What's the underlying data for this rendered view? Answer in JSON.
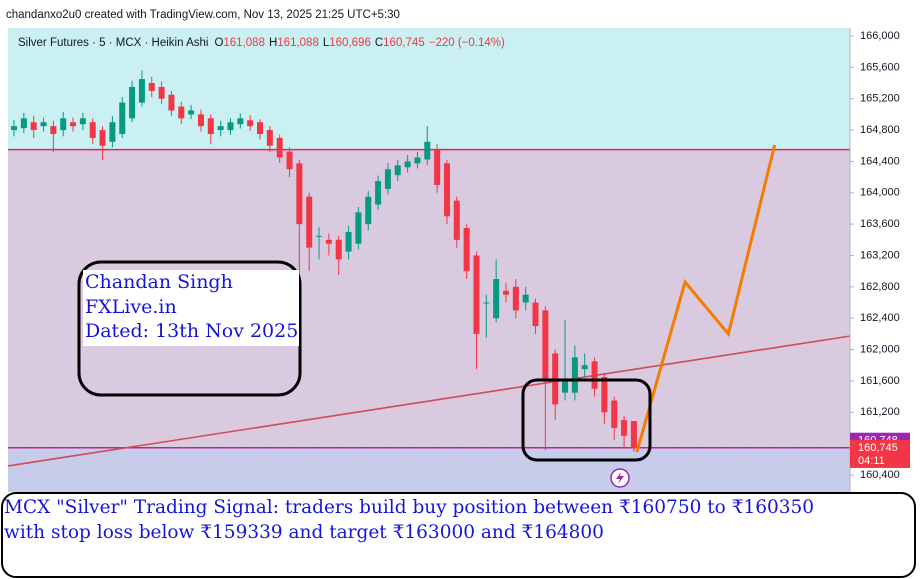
{
  "header": "chandanxo2u0 created with TradingView.com, Nov 13, 2025 21:25 UTC+5:30",
  "chart_data": {
    "type": "candlestick",
    "legend": {
      "symbol": "Silver Futures · 5 · MCX · Heikin Ashi",
      "items": [
        {
          "key": "O",
          "value": 161088,
          "label": "161,088"
        },
        {
          "key": "H",
          "value": 161088,
          "label": "161,088"
        },
        {
          "key": "L",
          "value": 160696,
          "label": "160,696"
        },
        {
          "key": "C",
          "value": 160745,
          "label": "160,745"
        }
      ],
      "change": "−220 (−0.14%)"
    },
    "up_color": "#089981",
    "down_color": "#f23645",
    "open": [
      164800,
      164825,
      164900,
      164850,
      164850,
      164800,
      164900,
      164875,
      164900,
      164800,
      164650,
      164750,
      164950,
      165150,
      165400,
      165350,
      165250,
      165100,
      165000,
      165000,
      164950,
      164800,
      164800,
      164875,
      164925,
      164900,
      164800,
      164700,
      164525,
      164375,
      163950,
      163450,
      163400,
      163400,
      163250,
      163350,
      163600,
      163850,
      164050,
      164225,
      164325,
      164375,
      164425,
      164550,
      164375,
      163900,
      163550,
      163200,
      162600,
      162400,
      162750,
      162800,
      162600,
      162600,
      162500,
      161950,
      161450,
      161450,
      161750,
      161850,
      161650,
      161350,
      161100,
      161088
    ],
    "high": [
      164930,
      165020,
      164980,
      164960,
      164920,
      165030,
      164960,
      165020,
      164950,
      164850,
      164980,
      165220,
      165430,
      165560,
      165480,
      165420,
      165300,
      165160,
      165120,
      165060,
      165000,
      164920,
      164950,
      165010,
      164990,
      164940,
      164850,
      164740,
      164580,
      164420,
      164000,
      163560,
      163480,
      163450,
      163580,
      163820,
      164020,
      164220,
      164380,
      164420,
      164480,
      164520,
      164850,
      164620,
      164420,
      163950,
      163600,
      163250,
      162700,
      163150,
      162850,
      162900,
      162800,
      162650,
      162550,
      162000,
      162380,
      162050,
      161950,
      161900,
      161700,
      161400,
      161150,
      161088
    ],
    "low": [
      164720,
      164760,
      164700,
      164780,
      164520,
      164720,
      164780,
      164800,
      164620,
      164420,
      164580,
      164700,
      164900,
      165100,
      165220,
      165130,
      164980,
      164880,
      164940,
      164780,
      164620,
      164720,
      164740,
      164820,
      164790,
      164680,
      164520,
      164380,
      164200,
      162950,
      163000,
      163150,
      163200,
      162950,
      163150,
      163280,
      163520,
      163780,
      163980,
      164150,
      164260,
      164310,
      164350,
      164000,
      163600,
      163300,
      162900,
      161750,
      162150,
      162350,
      162600,
      162400,
      162500,
      162200,
      160720,
      161100,
      161350,
      161350,
      161650,
      161400,
      161050,
      160850,
      160750,
      160696
    ],
    "close": [
      164850,
      164950,
      164800,
      164900,
      164750,
      164950,
      164850,
      164950,
      164700,
      164600,
      164900,
      165150,
      165350,
      165450,
      165300,
      165200,
      165050,
      164950,
      165050,
      164850,
      164750,
      164850,
      164900,
      164950,
      164850,
      164750,
      164600,
      164450,
      164300,
      163600,
      163300,
      163450,
      163350,
      163150,
      163500,
      163750,
      163950,
      164150,
      164300,
      164350,
      164400,
      164450,
      164650,
      164100,
      163700,
      163400,
      163000,
      162200,
      162600,
      162900,
      162700,
      162500,
      162700,
      162300,
      161600,
      161300,
      161600,
      161900,
      161800,
      161500,
      161200,
      161000,
      160900,
      160745
    ],
    "ylim": [
      160183,
      166102
    ],
    "yticks": [
      {
        "value": 166000,
        "label": "166,000"
      },
      {
        "value": 165600,
        "label": "165,600"
      },
      {
        "value": 165200,
        "label": "165,200"
      },
      {
        "value": 164800,
        "label": "164,800"
      },
      {
        "value": 164400,
        "label": "164,400"
      },
      {
        "value": 164000,
        "label": "164,000"
      },
      {
        "value": 163600,
        "label": "163,600"
      },
      {
        "value": 163200,
        "label": "163,200"
      },
      {
        "value": 162800,
        "label": "162,800"
      },
      {
        "value": 162400,
        "label": "162,400"
      },
      {
        "value": 162000,
        "label": "162,000"
      },
      {
        "value": 161600,
        "label": "161,600"
      },
      {
        "value": 161200,
        "label": "161,200"
      },
      {
        "value": 160800,
        "label": "160,800"
      },
      {
        "value": 160400,
        "label": "160,400"
      }
    ],
    "grid": false,
    "zone_colors": [
      "#caf0f2",
      "#d9cadf",
      "#c7cceb"
    ],
    "hlines": [
      {
        "value": 164550,
        "color": "#e0245e"
      },
      {
        "value": 160748,
        "label": "160,748",
        "color": "#9c27b0"
      }
    ],
    "last": {
      "value": 160745,
      "label": "160,745",
      "countdown": "04:11",
      "color": "#f23645"
    },
    "trendline": {
      "x": [
        -0.6,
        85
      ],
      "y": [
        160515,
        162173
      ],
      "color": "#d04a5c"
    },
    "projection": {
      "x": [
        63.3,
        68.2,
        72.6,
        77.3
      ],
      "y": [
        160693,
        162862,
        162199,
        164610
      ],
      "color": "#f57c00"
    }
  },
  "annotation": {
    "lines": [
      "Chandan Singh",
      "FXLive.in",
      "Dated: 13th Nov 2025"
    ]
  },
  "signal": {
    "lines": [
      "MCX \"Silver\" Trading Signal: traders build buy position between ₹160750 to ₹160350",
      "with stop loss below ₹159339 and target ₹163000 and ₹164800"
    ]
  }
}
